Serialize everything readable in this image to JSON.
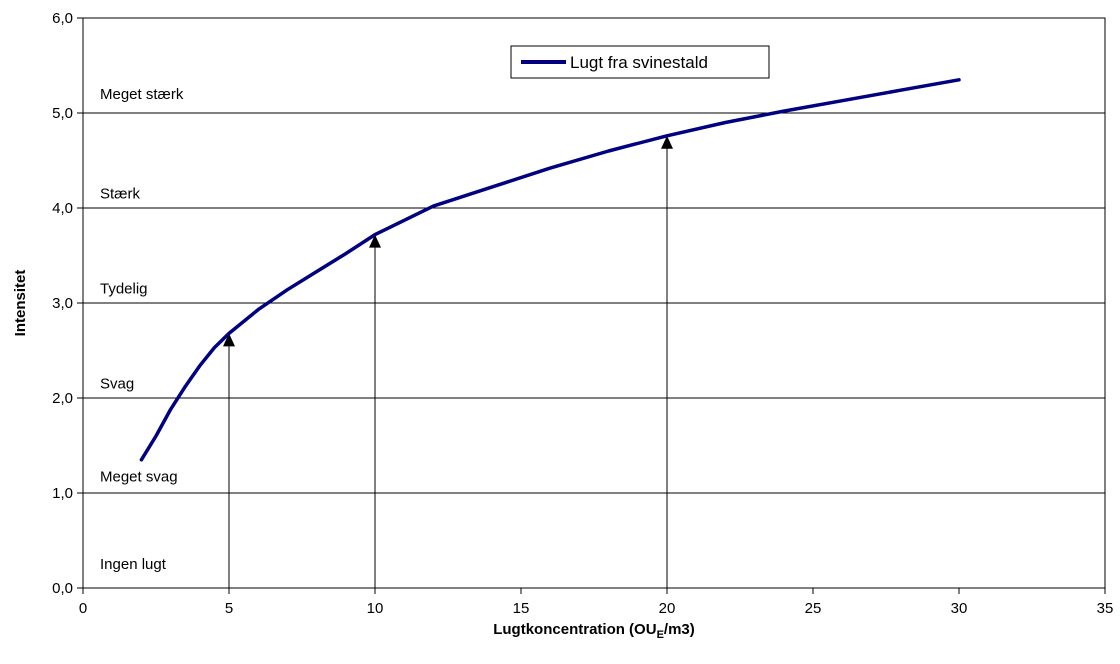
{
  "chart_data": {
    "type": "line",
    "xlabel_main": "Lugtkoncentration (OU",
    "xlabel_sub": "E",
    "xlabel_tail": "/m3)",
    "ylabel": "Intensitet",
    "xlim": [
      0,
      35
    ],
    "ylim": [
      0,
      6
    ],
    "x_ticks": [
      0,
      5,
      10,
      15,
      20,
      25,
      30,
      35
    ],
    "y_ticks": [
      0,
      1,
      2,
      3,
      4,
      5,
      6
    ],
    "y_tick_labels": [
      "0,0",
      "1,0",
      "2,0",
      "3,0",
      "4,0",
      "5,0",
      "6,0"
    ],
    "gridlines": "horizontal",
    "legend_position": "top-center",
    "series": [
      {
        "name": "Lugt fra svinestald",
        "color": "#000080",
        "x": [
          2,
          2.5,
          3,
          3.5,
          4,
          4.5,
          5,
          6,
          7,
          8,
          9,
          10,
          12,
          14,
          16,
          18,
          20,
          22,
          24,
          26,
          28,
          30
        ],
        "y": [
          1.35,
          1.6,
          1.88,
          2.12,
          2.34,
          2.53,
          2.68,
          2.93,
          3.14,
          3.33,
          3.52,
          3.72,
          4.02,
          4.22,
          4.42,
          4.6,
          4.76,
          4.9,
          5.02,
          5.13,
          5.24,
          5.35
        ]
      }
    ],
    "band_labels": [
      {
        "text": "Meget stærk",
        "y": 5.15
      },
      {
        "text": "Stærk",
        "y": 4.1
      },
      {
        "text": "Tydelig",
        "y": 3.1
      },
      {
        "text": "Svag",
        "y": 2.1
      },
      {
        "text": "Meget svag",
        "y": 1.12
      },
      {
        "text": "Ingen lugt",
        "y": 0.2
      }
    ],
    "arrows": [
      {
        "x": 5,
        "y_to": 2.68
      },
      {
        "x": 10,
        "y_to": 3.72
      },
      {
        "x": 20,
        "y_to": 4.76
      }
    ]
  }
}
